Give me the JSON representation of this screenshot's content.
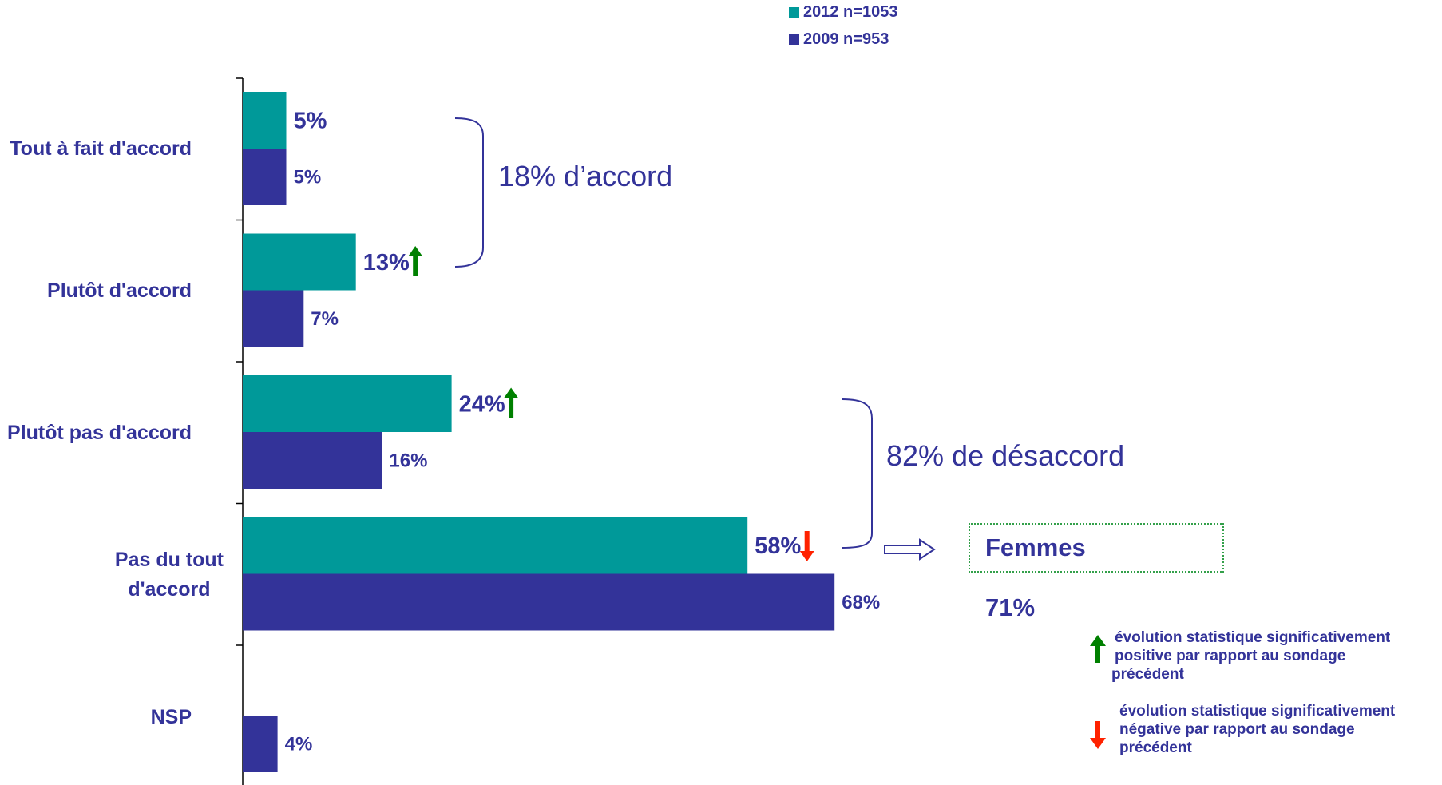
{
  "chart_data": {
    "type": "bar",
    "orientation": "horizontal",
    "categories": [
      "Tout à fait d'accord",
      "Plutôt d'accord",
      "Plutôt pas d'accord",
      "Pas du tout d'accord",
      "NSP"
    ],
    "series": [
      {
        "name": "2012 n=1053",
        "color": "#009999",
        "values": [
          5,
          13,
          24,
          58,
          null
        ],
        "labels": [
          "5%",
          "13%",
          "24%",
          "58%",
          ""
        ]
      },
      {
        "name": "2009 n=953",
        "color": "#333399",
        "values": [
          5,
          7,
          16,
          68,
          4
        ],
        "labels": [
          "5%",
          "7%",
          "16%",
          "68%",
          "4%"
        ]
      }
    ],
    "trend_markers": [
      {
        "category": "Plutôt d'accord",
        "series": "2012 n=1053",
        "direction": "up",
        "color": "#008000"
      },
      {
        "category": "Plutôt pas d'accord",
        "series": "2012 n=1053",
        "direction": "up",
        "color": "#008000"
      },
      {
        "category": "Pas du tout d'accord",
        "series": "2012 n=1053",
        "direction": "down",
        "color": "#ff2200"
      }
    ],
    "xlim": [
      0,
      80
    ],
    "legend_position": "top-center",
    "grid": false
  },
  "legend": {
    "items": [
      {
        "label": "2012 n=1053",
        "color": "#009999"
      },
      {
        "label": "2009 n=953",
        "color": "#333399"
      }
    ]
  },
  "category_labels": [
    [
      "Tout à fait d'accord"
    ],
    [
      "Plutôt d'accord"
    ],
    [
      "Plutôt pas d'accord"
    ],
    [
      "Pas du tout",
      "d'accord"
    ],
    [
      "NSP"
    ]
  ],
  "brackets": {
    "agree": "18% d’accord",
    "disagree": "82% de désaccord"
  },
  "callout": {
    "title": "Femmes",
    "value": "71%"
  },
  "notes": {
    "up": [
      "évolution statistique significativement",
      "positive par rapport au sondage",
      "précédent"
    ],
    "down": [
      "évolution statistique significativement",
      "négative par rapport au sondage",
      "précédent"
    ]
  },
  "colors": {
    "text": "#333399",
    "up_arrow": "#008000",
    "down_arrow": "#ff2200"
  }
}
